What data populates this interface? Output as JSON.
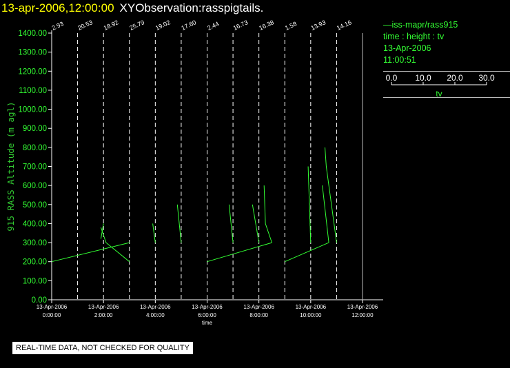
{
  "header": {
    "datetime": "13-apr-2006,12:00:00",
    "observation": "XYObservation:rasspigtails."
  },
  "legend": {
    "series": "iss-mapr/rass915",
    "axes": "time : height : tv",
    "date": "13-Apr-2006",
    "time": "11:00:51",
    "scale_ticks": [
      "0.0",
      "10.0",
      "20.0",
      "30.0"
    ],
    "scale_label": "tv"
  },
  "notice": "REAL-TIME DATA, NOT CHECKED FOR QUALITY",
  "colors": {
    "series": "#33ff33",
    "title": "#ffff00",
    "axis": "#ffffff",
    "ylabel": "#33cc33"
  },
  "chart_data": {
    "type": "line",
    "title": "",
    "xlabel": "time",
    "ylabel": "915 RASS Altitude (m agl)",
    "xlim_hours": [
      0,
      12
    ],
    "ylim": [
      0,
      1400
    ],
    "y_ticks": [
      "0.00",
      "100.00",
      "200.00",
      "300.00",
      "400.00",
      "500.00",
      "600.00",
      "700.00",
      "800.00",
      "900.00",
      "1000.00",
      "1100.00",
      "1200.00",
      "1300.00",
      "1400.00"
    ],
    "x_ticks": [
      {
        "date": "13-Apr-2006",
        "time": "0:00:00",
        "hour": 0
      },
      {
        "date": "13-Apr-2006",
        "time": "2:00:00",
        "hour": 2
      },
      {
        "date": "13-Apr-2006",
        "time": "4:00:00",
        "hour": 4
      },
      {
        "date": "13-Apr-2006",
        "time": "6:00:00",
        "hour": 6
      },
      {
        "date": "13-Apr-2006",
        "time": "8:00:00",
        "hour": 8
      },
      {
        "date": "13-Apr-2006",
        "time": "10:00:00",
        "hour": 10
      },
      {
        "date": "13-Apr-2006",
        "time": "12:00:00",
        "hour": 12
      }
    ],
    "profile_times_hours": [
      0,
      1,
      2,
      3,
      4,
      5,
      6,
      7,
      8,
      9,
      10,
      11
    ],
    "surface_labels": [
      "2.93",
      "20.53",
      "18.92",
      "25.79",
      "19.02",
      "17.60",
      "2.44",
      "16.73",
      "16.38",
      "1.58",
      "13.93",
      "14.16"
    ],
    "segments": [
      {
        "points": [
          [
            0.0,
            200
          ],
          [
            3.0,
            300
          ]
        ]
      },
      {
        "points": [
          [
            2.0,
            400
          ],
          [
            1.9,
            320
          ]
        ]
      },
      {
        "points": [
          [
            1.9,
            380
          ],
          [
            2.1,
            300
          ],
          [
            3.0,
            200
          ]
        ]
      },
      {
        "points": [
          [
            3.9,
            400
          ],
          [
            4.0,
            300
          ]
        ]
      },
      {
        "points": [
          [
            4.85,
            500
          ],
          [
            5.0,
            300
          ]
        ]
      },
      {
        "points": [
          [
            6.0,
            200
          ],
          [
            8.5,
            300
          ]
        ]
      },
      {
        "points": [
          [
            6.85,
            500
          ],
          [
            7.0,
            300
          ]
        ]
      },
      {
        "points": [
          [
            7.75,
            500
          ],
          [
            8.0,
            300
          ]
        ]
      },
      {
        "points": [
          [
            8.2,
            600
          ],
          [
            8.25,
            400
          ],
          [
            8.5,
            300
          ]
        ]
      },
      {
        "points": [
          [
            9.0,
            200
          ],
          [
            10.7,
            300
          ]
        ]
      },
      {
        "points": [
          [
            9.9,
            700
          ],
          [
            10.0,
            300
          ]
        ]
      },
      {
        "points": [
          [
            10.55,
            800
          ],
          [
            10.6,
            700
          ],
          [
            11.0,
            300
          ]
        ]
      },
      {
        "points": [
          [
            10.45,
            600
          ],
          [
            10.7,
            300
          ]
        ]
      }
    ]
  }
}
